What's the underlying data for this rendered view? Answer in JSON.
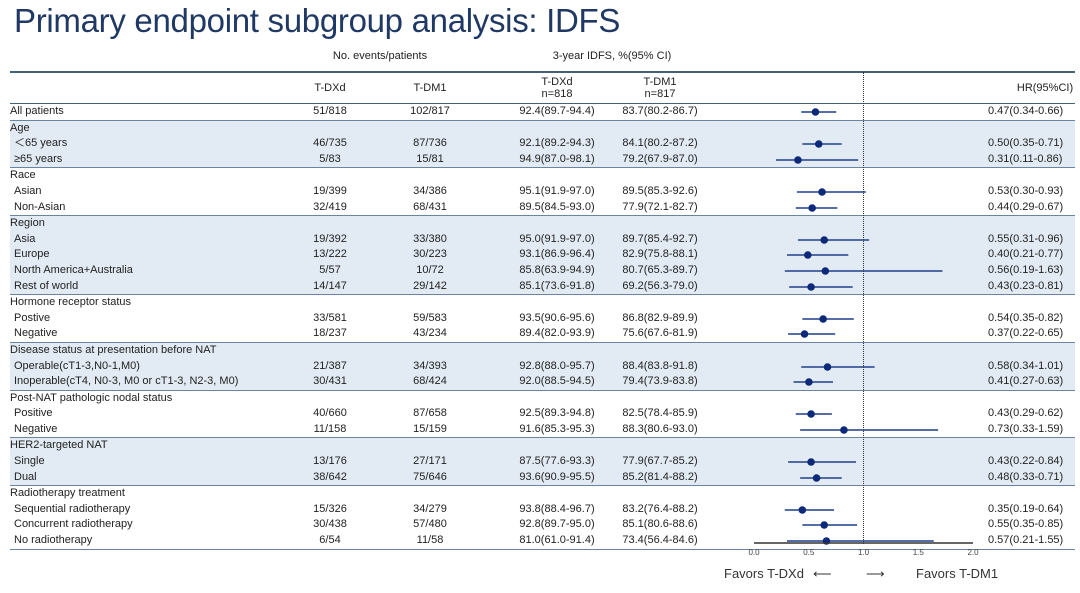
{
  "title": "Primary endpoint subgroup analysis: IDFS",
  "headers": {
    "events": "No. events/patients",
    "idfs": "3-year IDFS, %(95% CI)",
    "tdxd": "T-DXd",
    "tdm1": "T-DM1",
    "tdxd_n": "T-DXd\nn=818",
    "tdm1_n": "T-DM1\nn=817",
    "hr": "HR(95%CI)"
  },
  "footer": {
    "favors_left": "Favors T-DXd",
    "favors_right": "Favors T-DM1",
    "arrow_left": "⟵",
    "arrow_right": "⟶"
  },
  "chart_data": {
    "type": "forest",
    "title": "Primary endpoint subgroup analysis: IDFS",
    "xlabel": "HR",
    "xlim": [
      0,
      2
    ],
    "xticks": [
      "0.0",
      "0.5",
      "1.0",
      "1.5",
      "2.0"
    ],
    "reference": 1.0,
    "groups": [
      {
        "label": "",
        "rows": [
          {
            "label": "All patients",
            "e1": "51/818",
            "e2": "102/817",
            "i1": "92.4(89.7-94.4)",
            "i2": "83.7(80.2-86.7)",
            "hr_text": "0.47(0.34-0.66)",
            "hr": 0.47,
            "lo": 0.34,
            "hi": 0.66
          }
        ]
      },
      {
        "label": "Age",
        "rows": [
          {
            "label": "＜65 years",
            "e1": "46/735",
            "e2": "87/736",
            "i1": "92.1(89.2-94.3)",
            "i2": "84.1(80.2-87.2)",
            "hr_text": "0.50(0.35-0.71)",
            "hr": 0.5,
            "lo": 0.35,
            "hi": 0.71
          },
          {
            "label": "≥65 years",
            "e1": "5/83",
            "e2": "15/81",
            "i1": "94.9(87.0-98.1)",
            "i2": "79.2(67.9-87.0)",
            "hr_text": "0.31(0.11-0.86)",
            "hr": 0.31,
            "lo": 0.11,
            "hi": 0.86
          }
        ]
      },
      {
        "label": "Race",
        "rows": [
          {
            "label": "Asian",
            "e1": "19/399",
            "e2": "34/386",
            "i1": "95.1(91.9-97.0)",
            "i2": "89.5(85.3-92.6)",
            "hr_text": "0.53(0.30-0.93)",
            "hr": 0.53,
            "lo": 0.3,
            "hi": 0.93
          },
          {
            "label": "Non-Asian",
            "e1": "32/419",
            "e2": "68/431",
            "i1": "89.5(84.5-93.0)",
            "i2": "77.9(72.1-82.7)",
            "hr_text": "0.44(0.29-0.67)",
            "hr": 0.44,
            "lo": 0.29,
            "hi": 0.67
          }
        ]
      },
      {
        "label": "Region",
        "rows": [
          {
            "label": "Asia",
            "e1": "19/392",
            "e2": "33/380",
            "i1": "95.0(91.9-97.0)",
            "i2": "89.7(85.4-92.7)",
            "hr_text": "0.55(0.31-0.96)",
            "hr": 0.55,
            "lo": 0.31,
            "hi": 0.96
          },
          {
            "label": "Europe",
            "e1": "13/222",
            "e2": "30/223",
            "i1": "93.1(86.9-96.4)",
            "i2": "82.9(75.8-88.1)",
            "hr_text": "0.40(0.21-0.77)",
            "hr": 0.4,
            "lo": 0.21,
            "hi": 0.77
          },
          {
            "label": "North America+Australia",
            "e1": "5/57",
            "e2": "10/72",
            "i1": "85.8(63.9-94.9)",
            "i2": "80.7(65.3-89.7)",
            "hr_text": "0.56(0.19-1.63)",
            "hr": 0.56,
            "lo": 0.19,
            "hi": 1.63
          },
          {
            "label": "Rest of world",
            "e1": "14/147",
            "e2": "29/142",
            "i1": "85.1(73.6-91.8)",
            "i2": "69.2(56.3-79.0)",
            "hr_text": "0.43(0.23-0.81)",
            "hr": 0.43,
            "lo": 0.23,
            "hi": 0.81
          }
        ]
      },
      {
        "label": "Hormone receptor status",
        "rows": [
          {
            "label": "Postive",
            "e1": "33/581",
            "e2": "59/583",
            "i1": "93.5(90.6-95.6)",
            "i2": "86.8(82.9-89.9)",
            "hr_text": "0.54(0.35-0.82)",
            "hr": 0.54,
            "lo": 0.35,
            "hi": 0.82
          },
          {
            "label": "Negative",
            "e1": "18/237",
            "e2": "43/234",
            "i1": "89.4(82.0-93.9)",
            "i2": "75.6(67.6-81.9)",
            "hr_text": "0.37(0.22-0.65)",
            "hr": 0.37,
            "lo": 0.22,
            "hi": 0.65
          }
        ]
      },
      {
        "label": "Disease status at presentation before NAT",
        "rows": [
          {
            "label": "Operable(cT1-3,N0-1,M0)",
            "e1": "21/387",
            "e2": "34/393",
            "i1": "92.8(88.0-95.7)",
            "i2": "88.4(83.8-91.8)",
            "hr_text": "0.58(0.34-1.01)",
            "hr": 0.58,
            "lo": 0.34,
            "hi": 1.01
          },
          {
            "label": "Inoperable(cT4, N0-3, M0 or cT1-3, N2-3, M0)",
            "e1": "30/431",
            "e2": "68/424",
            "i1": "92.0(88.5-94.5)",
            "i2": "79.4(73.9-83.8)",
            "hr_text": "0.41(0.27-0.63)",
            "hr": 0.41,
            "lo": 0.27,
            "hi": 0.63
          }
        ]
      },
      {
        "label": "Post-NAT pathologic nodal status",
        "rows": [
          {
            "label": "Positive",
            "e1": "40/660",
            "e2": "87/658",
            "i1": "92.5(89.3-94.8)",
            "i2": "82.5(78.4-85.9)",
            "hr_text": "0.43(0.29-0.62)",
            "hr": 0.43,
            "lo": 0.29,
            "hi": 0.62
          },
          {
            "label": "Negative",
            "e1": "11/158",
            "e2": "15/159",
            "i1": "91.6(85.3-95.3)",
            "i2": "88.3(80.6-93.0)",
            "hr_text": "0.73(0.33-1.59)",
            "hr": 0.73,
            "lo": 0.33,
            "hi": 1.59
          }
        ]
      },
      {
        "label": "HER2-targeted  NAT",
        "rows": [
          {
            "label": "Single",
            "e1": "13/176",
            "e2": "27/171",
            "i1": "87.5(77.6-93.3)",
            "i2": "77.9(67.7-85.2)",
            "hr_text": "0.43(0.22-0.84)",
            "hr": 0.43,
            "lo": 0.22,
            "hi": 0.84
          },
          {
            "label": "Dual",
            "e1": "38/642",
            "e2": "75/646",
            "i1": "93.6(90.9-95.5)",
            "i2": "85.2(81.4-88.2)",
            "hr_text": "0.48(0.33-0.71)",
            "hr": 0.48,
            "lo": 0.33,
            "hi": 0.71
          }
        ]
      },
      {
        "label": "Radiotherapy treatment",
        "rows": [
          {
            "label": "Sequential radiotherapy",
            "e1": "15/326",
            "e2": "34/279",
            "i1": "93.8(88.4-96.7)",
            "i2": "83.2(76.4-88.2)",
            "hr_text": "0.35(0.19-0.64)",
            "hr": 0.35,
            "lo": 0.19,
            "hi": 0.64
          },
          {
            "label": "Concurrent radiotherapy",
            "e1": "30/438",
            "e2": "57/480",
            "i1": "92.8(89.7-95.0)",
            "i2": "85.1(80.6-88.6)",
            "hr_text": "0.55(0.35-0.85)",
            "hr": 0.55,
            "lo": 0.35,
            "hi": 0.85
          },
          {
            "label": "No radiotherapy",
            "e1": "6/54",
            "e2": "11/58",
            "i1": "81.0(61.0-91.4)",
            "i2": "73.4(56.4-84.6)",
            "hr_text": "0.57(0.21-1.55)",
            "hr": 0.57,
            "lo": 0.21,
            "hi": 1.55
          }
        ]
      }
    ],
    "colors": {
      "marker": "#0d2a7a",
      "shade": "#e2ebf3",
      "title": "#1f3864"
    }
  }
}
